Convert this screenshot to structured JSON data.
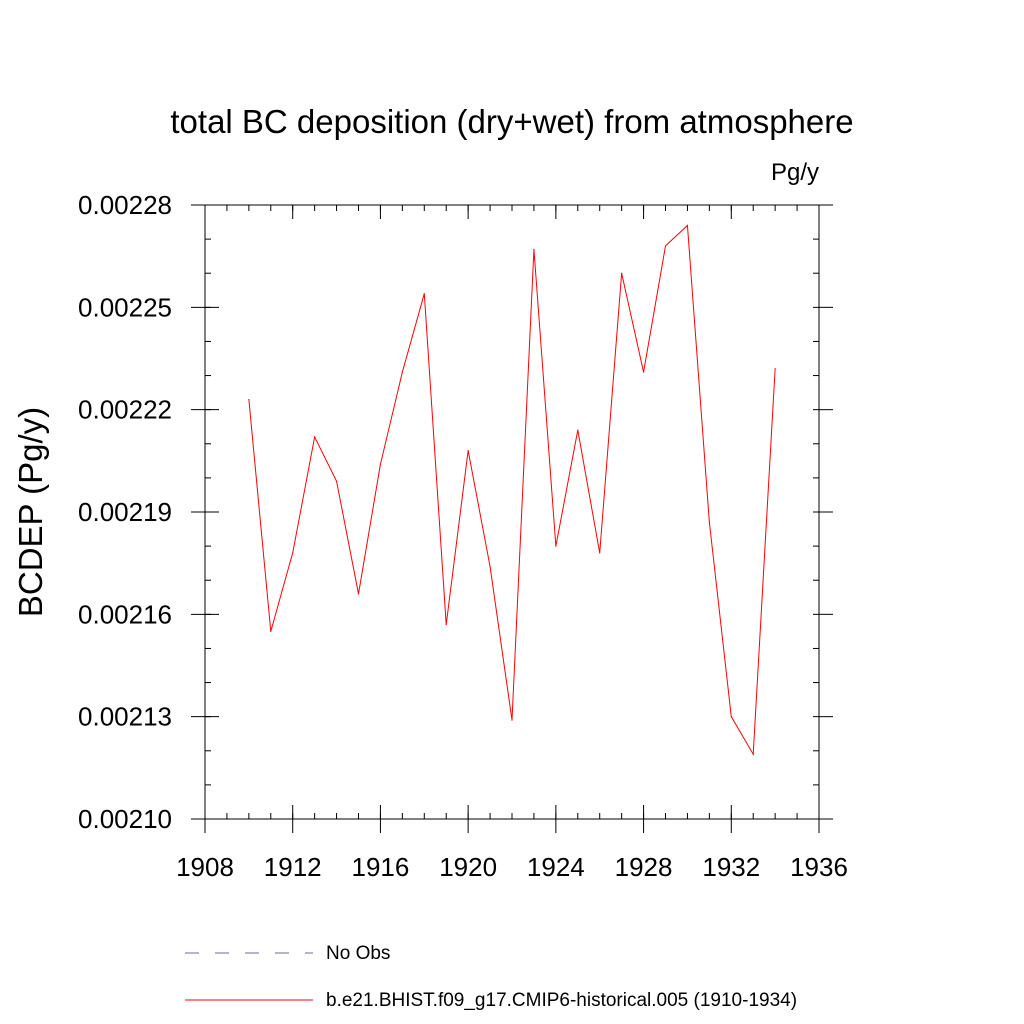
{
  "chart_data": {
    "type": "line",
    "title": "total BC deposition (dry+wet) from atmosphere",
    "units_label": "Pg/y",
    "ylabel": "BCDEP  (Pg/y)",
    "xlabel": "",
    "xlim": [
      1908,
      1936
    ],
    "ylim": [
      0.0021,
      0.00228
    ],
    "x_ticks": [
      1908,
      1912,
      1916,
      1920,
      1924,
      1928,
      1932,
      1936
    ],
    "x_tick_labels": [
      "1908",
      "1912",
      "1916",
      "1920",
      "1924",
      "1928",
      "1932",
      "1936"
    ],
    "y_ticks": [
      0.0021,
      0.00213,
      0.00216,
      0.00219,
      0.00222,
      0.00225,
      0.00228
    ],
    "y_tick_labels": [
      "0.00210",
      "0.00213",
      "0.00216",
      "0.00219",
      "0.00222",
      "0.00225",
      "0.00228"
    ],
    "x_minor_step": 1,
    "y_minor_step": 1e-05,
    "grid": false,
    "legend_position": "bottom",
    "series": [
      {
        "name": "b.e21.BHIST.f09_g17.CMIP6-historical.005 (1910-1934)",
        "color": "#ff0000",
        "style": "solid",
        "x": [
          1910,
          1911,
          1912,
          1913,
          1914,
          1915,
          1916,
          1917,
          1918,
          1919,
          1920,
          1921,
          1922,
          1923,
          1924,
          1925,
          1926,
          1927,
          1928,
          1929,
          1930,
          1931,
          1932,
          1933,
          1934
        ],
        "values": [
          0.002223,
          0.002155,
          0.002178,
          0.002212,
          0.002199,
          0.002166,
          0.002204,
          0.002231,
          0.002254,
          0.002157,
          0.002208,
          0.002174,
          0.002129,
          0.002267,
          0.00218,
          0.002214,
          0.002178,
          0.00226,
          0.002231,
          0.002268,
          0.002274,
          0.002187,
          0.00213,
          0.002119,
          0.002232
        ]
      }
    ],
    "legend": [
      {
        "label": "No Obs",
        "color": "#6a6aa8",
        "style": "dashed"
      },
      {
        "label": "b.e21.BHIST.f09_g17.CMIP6-historical.005 (1910-1934)",
        "color": "#ff0000",
        "style": "solid"
      }
    ]
  }
}
